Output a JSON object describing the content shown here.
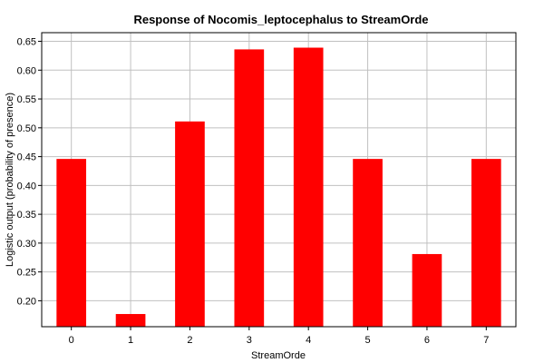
{
  "chart_data": {
    "type": "bar",
    "title": "Response of Nocomis_leptocephalus to StreamOrde",
    "xlabel": "StreamOrde",
    "ylabel": "Logistic output (probability of presence)",
    "categories": [
      "0",
      "1",
      "2",
      "3",
      "4",
      "5",
      "6",
      "7"
    ],
    "values": [
      0.446,
      0.177,
      0.511,
      0.636,
      0.639,
      0.446,
      0.281,
      0.446
    ],
    "ylim": [
      0.155,
      0.665
    ],
    "yticks": [
      "0.20",
      "0.25",
      "0.30",
      "0.35",
      "0.40",
      "0.45",
      "0.50",
      "0.55",
      "0.60",
      "0.65"
    ],
    "grid": true,
    "legend": "none",
    "colors": {
      "bar": "#ff0000",
      "grid": "#c0c0c0",
      "frame": "#000000",
      "background": "#ffffff"
    }
  }
}
